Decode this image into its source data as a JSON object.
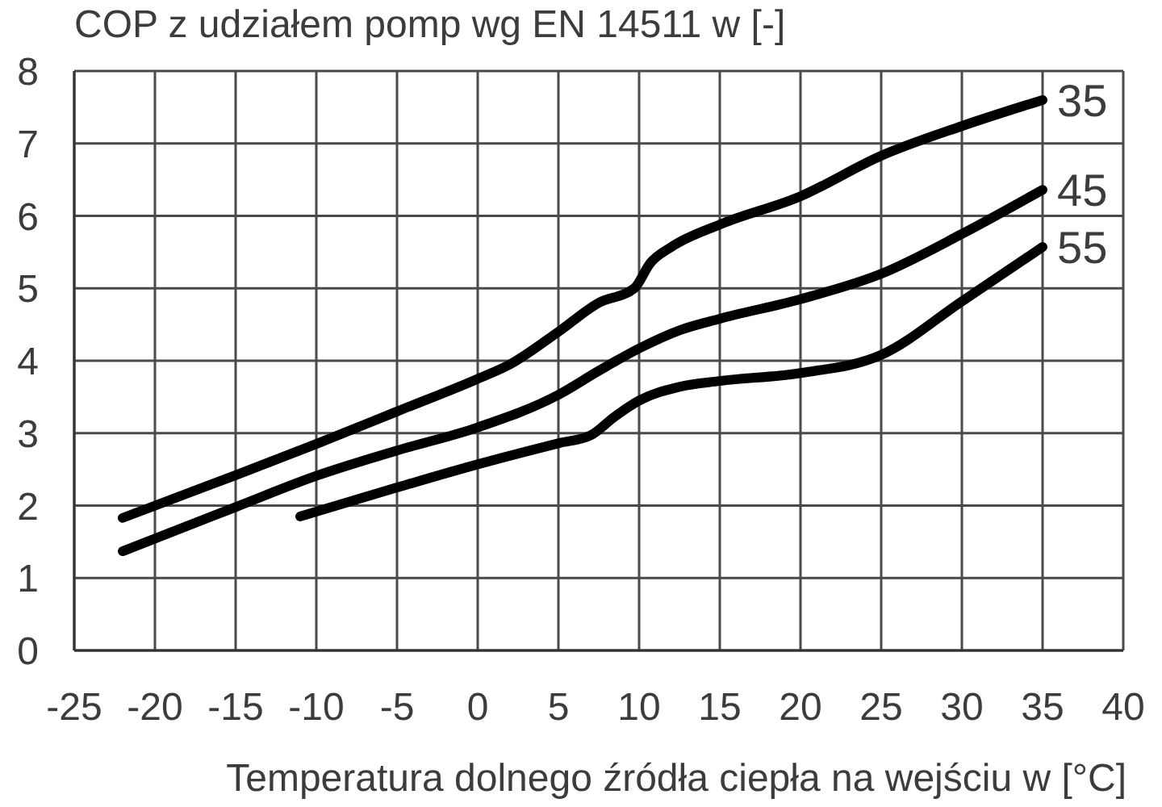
{
  "chart_data": {
    "type": "line",
    "title": "COP z udziałem pomp wg EN 14511 w [-]",
    "xlabel": "Temperatura dolnego źródła ciepła na wejściu w [°C]",
    "xlim": [
      -25,
      40
    ],
    "xticks": [
      -25,
      -20,
      -15,
      -10,
      -5,
      0,
      5,
      10,
      15,
      20,
      25,
      30,
      35,
      40
    ],
    "ylim": [
      0,
      8
    ],
    "yticks": [
      0,
      1,
      2,
      3,
      4,
      5,
      6,
      7,
      8
    ],
    "grid": true,
    "series": [
      {
        "name": "35",
        "color": "#000000",
        "x": [
          -22,
          -15,
          -10,
          -5,
          0,
          2,
          5,
          7.5,
          9.7,
          10.7,
          12,
          15,
          20,
          25,
          30,
          35
        ],
        "values": [
          1.83,
          2.42,
          2.85,
          3.3,
          3.75,
          3.95,
          4.4,
          4.8,
          5.0,
          5.35,
          5.57,
          5.88,
          6.27,
          6.83,
          7.24,
          7.6
        ]
      },
      {
        "name": "45",
        "color": "#000000",
        "x": [
          -22,
          -15,
          -10,
          -5,
          0,
          5,
          7.5,
          10,
          12.5,
          15,
          20,
          25,
          30,
          35
        ],
        "values": [
          1.37,
          1.98,
          2.41,
          2.76,
          3.08,
          3.53,
          3.86,
          4.17,
          4.42,
          4.58,
          4.85,
          5.2,
          5.75,
          6.36
        ]
      },
      {
        "name": "55",
        "color": "#000000",
        "x": [
          -11,
          -5,
          0,
          5,
          7,
          8.5,
          10,
          12.5,
          15,
          20,
          25,
          30,
          35
        ],
        "values": [
          1.85,
          2.25,
          2.57,
          2.86,
          2.97,
          3.23,
          3.45,
          3.64,
          3.72,
          3.83,
          4.08,
          4.82,
          5.57
        ]
      }
    ]
  }
}
